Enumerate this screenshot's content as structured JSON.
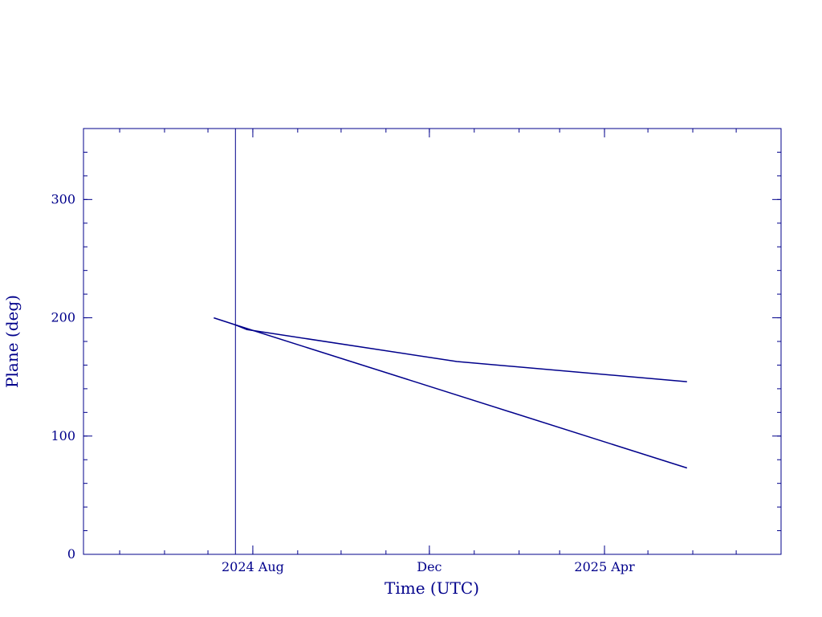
{
  "chart_data": {
    "type": "line",
    "title": "",
    "xlabel": "Time (UTC)",
    "ylabel": "Plane (deg)",
    "colors": {
      "axis": "#00008b",
      "line": "#00008b"
    },
    "xlim": [
      "2024-04-06",
      "2025-08-01"
    ],
    "ylim": [
      0,
      360
    ],
    "yticks": [
      0,
      100,
      200,
      300
    ],
    "yminor_step": 20,
    "xticks": [
      {
        "date": "2024-08-01",
        "label": "2024 Aug"
      },
      {
        "date": "2024-12-01",
        "label": "Dec"
      },
      {
        "date": "2025-04-01",
        "label": "2025 Apr"
      }
    ],
    "xminor": [
      "2024-05-01",
      "2024-06-01",
      "2024-07-01",
      "2024-08-01",
      "2024-09-01",
      "2024-10-01",
      "2024-11-01",
      "2024-12-01",
      "2025-01-01",
      "2025-02-01",
      "2025-03-01",
      "2025-04-01",
      "2025-05-01",
      "2025-06-01",
      "2025-07-01"
    ],
    "vline": {
      "date": "2024-07-20"
    },
    "series": [
      {
        "x": [
          "2024-07-05",
          "2024-07-20"
        ],
        "y": [
          200,
          194
        ]
      },
      {
        "x": [
          "2024-07-20",
          "2024-07-28",
          "2024-12-20",
          "2025-05-28"
        ],
        "y": [
          194,
          190,
          163,
          146
        ]
      },
      {
        "x": [
          "2024-07-20",
          "2025-05-28"
        ],
        "y": [
          194,
          73
        ]
      }
    ]
  }
}
